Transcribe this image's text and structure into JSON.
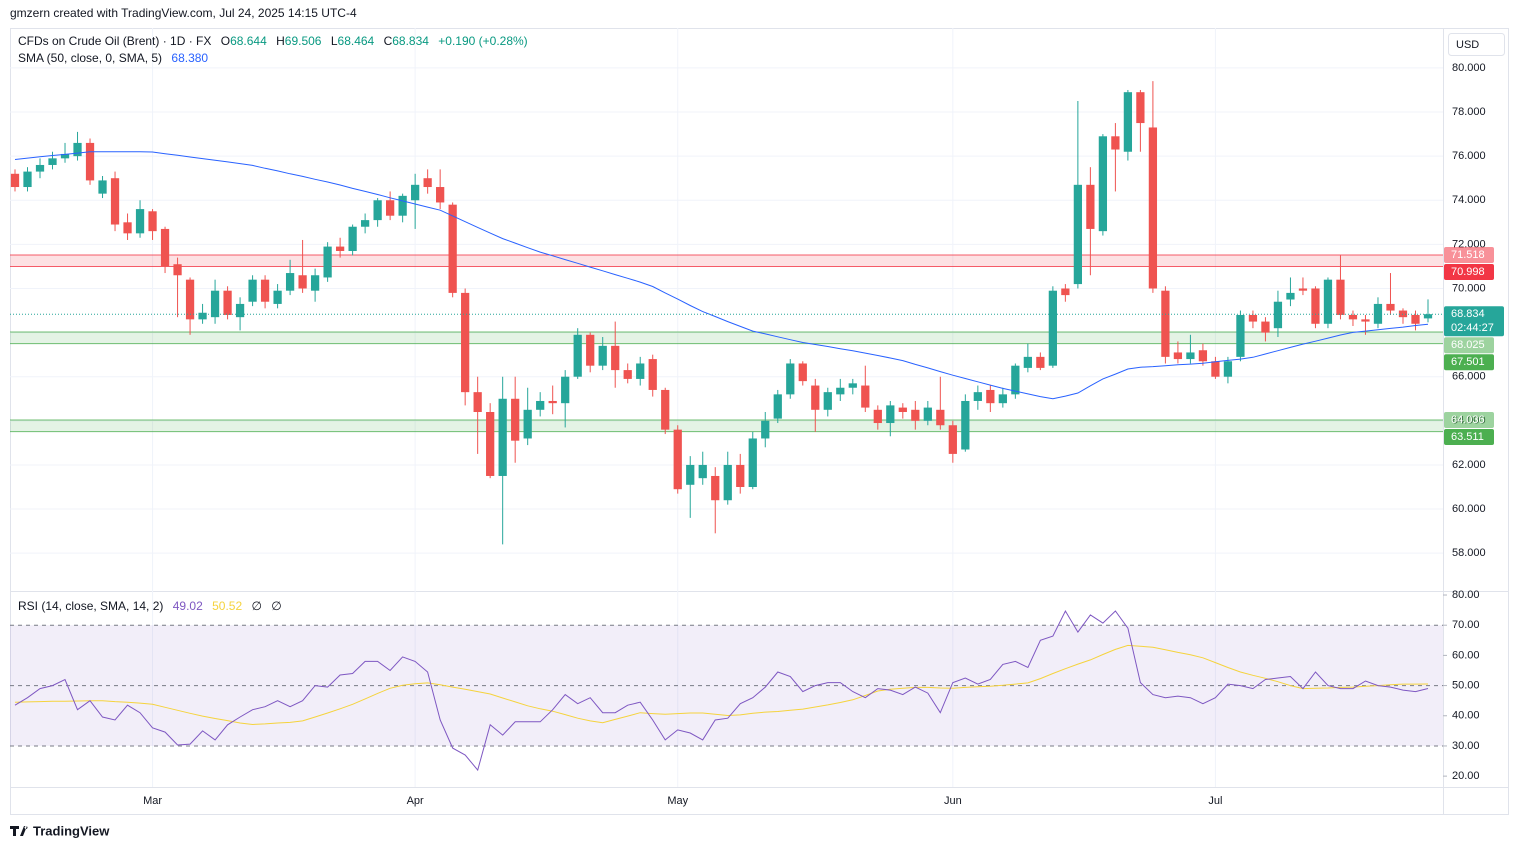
{
  "header": {
    "attribution": "gmzern created with TradingView.com, Jul 24, 2025 14:15 UTC-4",
    "logo": "TradingView"
  },
  "chart_data": [
    {
      "type": "candlestick",
      "title": "CFDs on Crude Oil (Brent) · 1D · FX",
      "ohlc_labels": [
        "O",
        "H",
        "L",
        "C"
      ],
      "change": "+0.190 (+0.28%)",
      "currency": "USD",
      "countdown": "02:44:27",
      "up_color": "#26a69a",
      "down_color": "#ef5350",
      "open": [
        75.2,
        74.6,
        75.3,
        75.6,
        75.9,
        76.0,
        76.6,
        74.3,
        75.0,
        73.0,
        72.5,
        73.5,
        72.7,
        71.1,
        70.4,
        68.6,
        68.7,
        69.9,
        68.7,
        69.4,
        70.4,
        69.3,
        69.9,
        70.6,
        69.9,
        70.5,
        71.9,
        71.7,
        72.8,
        73.1,
        74.0,
        73.3,
        74.0,
        75.0,
        74.6,
        73.8,
        69.8,
        65.3,
        64.4,
        61.5,
        65.0,
        63.2,
        64.5,
        64.9,
        64.8,
        66.0,
        67.9,
        66.5,
        67.4,
        66.3,
        65.9,
        66.8,
        65.4,
        63.6,
        61.1,
        61.4,
        61.5,
        60.4,
        62.0,
        61.0,
        63.2,
        64.1,
        65.2,
        66.6,
        65.6,
        64.5,
        65.2,
        65.5,
        65.6,
        64.5,
        63.9,
        64.6,
        64.5,
        64.0,
        64.5,
        63.8,
        62.7,
        64.9,
        65.4,
        64.8,
        65.2,
        66.4,
        66.9,
        66.5,
        70.0,
        70.2,
        74.7,
        72.6,
        76.9,
        76.2,
        78.9,
        77.3,
        69.9,
        67.1,
        66.8,
        67.2,
        66.7,
        66.0,
        66.9,
        68.8,
        68.5,
        68.2,
        69.5,
        70.0,
        70.0,
        68.4,
        70.4,
        68.8,
        68.6,
        68.4,
        69.3,
        69.0,
        68.8,
        68.644
      ],
      "high": [
        75.4,
        75.5,
        75.9,
        76.2,
        76.6,
        77.1,
        76.8,
        75.1,
        75.3,
        73.4,
        74.0,
        73.6,
        72.8,
        71.4,
        70.5,
        69.3,
        70.4,
        70.1,
        69.6,
        70.6,
        70.6,
        70.2,
        71.3,
        72.2,
        70.9,
        72.1,
        72.3,
        72.9,
        73.4,
        74.1,
        74.4,
        74.3,
        75.2,
        75.4,
        75.4,
        73.9,
        70.0,
        66.0,
        64.8,
        66.0,
        66.0,
        65.5,
        65.3,
        65.6,
        66.3,
        68.2,
        68.0,
        67.8,
        68.5,
        66.6,
        66.9,
        67.0,
        65.5,
        63.8,
        62.4,
        62.6,
        61.9,
        62.6,
        62.5,
        63.5,
        64.4,
        65.4,
        66.8,
        66.7,
        65.9,
        65.5,
        65.9,
        65.9,
        66.5,
        64.7,
        64.9,
        64.8,
        64.9,
        64.9,
        66.0,
        64.0,
        65.2,
        65.6,
        65.6,
        65.5,
        66.6,
        67.5,
        67.1,
        70.1,
        70.2,
        78.5,
        75.5,
        77.0,
        77.5,
        79.0,
        79.0,
        79.4,
        70.1,
        67.6,
        67.9,
        67.5,
        66.9,
        66.9,
        69.0,
        69.0,
        68.7,
        69.9,
        70.5,
        70.5,
        70.1,
        70.5,
        71.5,
        69.0,
        68.8,
        69.6,
        70.7,
        69.1,
        69.0,
        69.506
      ],
      "low": [
        74.4,
        74.4,
        75.0,
        75.4,
        75.7,
        75.8,
        74.7,
        74.1,
        72.6,
        72.2,
        72.3,
        72.2,
        70.7,
        68.7,
        67.9,
        68.4,
        68.4,
        68.6,
        68.1,
        69.2,
        69.1,
        69.1,
        69.7,
        69.8,
        69.4,
        70.3,
        71.4,
        71.5,
        72.5,
        72.8,
        73.1,
        73.0,
        72.7,
        74.3,
        73.6,
        69.6,
        64.7,
        62.5,
        61.4,
        58.4,
        62.1,
        62.9,
        64.2,
        64.3,
        63.7,
        65.9,
        66.2,
        66.3,
        65.5,
        65.7,
        65.6,
        65.1,
        63.4,
        60.7,
        59.6,
        61.1,
        58.9,
        60.2,
        60.7,
        60.9,
        62.8,
        63.9,
        65.0,
        65.6,
        63.5,
        64.2,
        64.9,
        65.2,
        64.4,
        63.6,
        63.3,
        64.1,
        63.6,
        63.8,
        63.6,
        62.1,
        62.6,
        64.5,
        64.4,
        64.6,
        65.0,
        66.2,
        66.3,
        66.4,
        69.4,
        70.0,
        70.6,
        72.4,
        74.4,
        75.8,
        76.2,
        69.8,
        66.6,
        66.6,
        66.6,
        66.5,
        65.9,
        65.7,
        66.7,
        68.2,
        67.6,
        67.8,
        69.2,
        69.7,
        68.2,
        68.2,
        68.6,
        68.3,
        67.9,
        68.2,
        68.8,
        68.4,
        68.1,
        68.464
      ],
      "close": [
        74.6,
        75.3,
        75.6,
        75.9,
        76.1,
        76.6,
        74.9,
        74.9,
        72.9,
        72.5,
        73.6,
        72.6,
        71.0,
        70.6,
        68.6,
        68.9,
        69.9,
        68.8,
        69.3,
        70.4,
        69.4,
        69.9,
        70.7,
        70.0,
        70.6,
        71.9,
        71.7,
        72.8,
        73.1,
        74.0,
        73.3,
        74.2,
        74.7,
        74.6,
        73.9,
        69.8,
        65.3,
        64.4,
        61.5,
        65.0,
        63.1,
        64.5,
        64.9,
        64.8,
        66.0,
        67.9,
        66.5,
        67.4,
        66.3,
        65.9,
        66.6,
        65.4,
        63.6,
        60.9,
        62.0,
        62.0,
        60.4,
        62.0,
        61.0,
        63.2,
        64.0,
        65.2,
        66.6,
        65.8,
        64.5,
        65.3,
        65.5,
        65.7,
        64.6,
        63.9,
        64.7,
        64.4,
        64.0,
        64.6,
        63.8,
        62.5,
        64.9,
        65.3,
        64.8,
        65.2,
        66.5,
        66.9,
        66.4,
        69.9,
        69.7,
        74.7,
        72.7,
        76.9,
        76.3,
        78.9,
        77.5,
        70.0,
        66.9,
        66.8,
        67.1,
        66.7,
        66.0,
        66.7,
        68.8,
        68.5,
        68.0,
        69.4,
        69.8,
        69.9,
        68.4,
        70.4,
        68.8,
        68.6,
        68.5,
        69.3,
        69.0,
        68.7,
        68.4,
        68.834
      ],
      "overlays": [
        {
          "name": "SMA (50, close, 0, SMA, 5)",
          "color": "#2962ff",
          "value_label": "68.380",
          "values": [
            75.85,
            75.91,
            75.97,
            76.03,
            76.08,
            76.14,
            76.2,
            76.2,
            76.2,
            76.2,
            76.2,
            76.19,
            76.11,
            76.04,
            75.96,
            75.89,
            75.81,
            75.74,
            75.66,
            75.58,
            75.45,
            75.33,
            75.2,
            75.08,
            74.95,
            74.83,
            74.69,
            74.54,
            74.4,
            74.26,
            74.11,
            73.97,
            73.83,
            73.69,
            73.55,
            73.29,
            73.03,
            72.77,
            72.51,
            72.26,
            72.06,
            71.85,
            71.65,
            71.48,
            71.31,
            71.14,
            70.97,
            70.8,
            70.63,
            70.46,
            70.29,
            70.09,
            69.8,
            69.52,
            69.23,
            68.95,
            68.73,
            68.5,
            68.28,
            68.07,
            67.94,
            67.81,
            67.68,
            67.55,
            67.46,
            67.37,
            67.27,
            67.18,
            67.07,
            66.96,
            66.85,
            66.73,
            66.56,
            66.4,
            66.23,
            66.07,
            65.92,
            65.77,
            65.62,
            65.47,
            65.35,
            65.22,
            65.1,
            65.0,
            65.12,
            65.26,
            65.59,
            65.9,
            66.12,
            66.35,
            66.43,
            66.46,
            66.5,
            66.54,
            66.57,
            66.61,
            66.68,
            66.74,
            66.8,
            66.88,
            67.03,
            67.18,
            67.33,
            67.48,
            67.61,
            67.75,
            67.89,
            68.01,
            68.07,
            68.13,
            68.19,
            68.25,
            68.32,
            68.38
          ]
        }
      ],
      "zones": [
        {
          "top": 71.518,
          "bottom": 70.998,
          "color": "#f23645"
        },
        {
          "top": 68.025,
          "bottom": 67.501,
          "color": "#4caf50"
        },
        {
          "top": 64.036,
          "bottom": 63.511,
          "color": "#4caf50"
        }
      ],
      "ylim": [
        56.33,
        81.81
      ],
      "yticks": [
        {
          "value": 58,
          "label": "58.000"
        },
        {
          "value": 60,
          "label": "60.000"
        },
        {
          "value": 62,
          "label": "62.000"
        },
        {
          "value": 64,
          "label": "64.000"
        },
        {
          "value": 66,
          "label": "66.000"
        },
        {
          "value": 68,
          "label": "68.000"
        },
        {
          "value": 70,
          "label": "70.000"
        },
        {
          "value": 72,
          "label": "72.000"
        },
        {
          "value": 74,
          "label": "74.000"
        },
        {
          "value": 76,
          "label": "76.000"
        },
        {
          "value": 78,
          "label": "78.000"
        },
        {
          "value": 80,
          "label": "80.000"
        }
      ],
      "xlim": [
        -0.4,
        114.2
      ],
      "xticks": [
        {
          "value": 11,
          "label": "Mar"
        },
        {
          "value": 32,
          "label": "Apr"
        },
        {
          "value": 53,
          "label": "May"
        },
        {
          "value": 75,
          "label": "Jun"
        },
        {
          "value": 96,
          "label": "Jul"
        }
      ],
      "grid": true
    },
    {
      "type": "line",
      "title": "RSI (14, close, SMA, 14, 2)",
      "extra_labels": [
        "∅",
        "∅"
      ],
      "series": [
        {
          "color": "#7e57c2",
          "values": [
            43.5,
            46,
            49,
            50,
            52,
            42,
            45,
            39.6,
            38.6,
            43.5,
            41,
            36,
            34.6,
            30.3,
            30.6,
            35,
            32,
            37,
            39.6,
            42,
            43,
            45,
            43,
            45,
            50,
            49.5,
            53.5,
            54,
            58,
            58,
            55,
            59.5,
            58,
            54.5,
            38.6,
            29.3,
            27,
            22,
            37,
            33.6,
            38,
            38,
            38,
            42,
            47,
            44,
            46,
            41,
            41,
            43.5,
            44.5,
            38.6,
            32,
            35.3,
            34.3,
            32,
            38.6,
            39.2,
            44,
            46,
            49.5,
            54.5,
            53,
            48,
            50,
            51,
            51,
            48,
            46,
            49,
            48.5,
            47,
            49.5,
            47.5,
            41,
            51,
            52.5,
            50.5,
            52,
            57,
            58,
            56,
            65,
            66.4,
            74.7,
            67.7,
            73.4,
            70.7,
            74.7,
            69,
            51,
            47,
            46,
            46.5,
            46,
            44,
            46,
            50.5,
            50,
            49,
            52,
            52.5,
            53,
            49,
            54.5,
            50,
            49,
            49,
            51.5,
            50,
            49.5,
            48.5,
            48,
            49.02
          ]
        },
        {
          "color": "#f5d33d",
          "values": [
            44.5,
            44.6,
            44.7,
            44.8,
            44.8,
            44.9,
            45.0,
            45.0,
            44.7,
            44.5,
            44.2,
            43.8,
            42.8,
            41.8,
            40.8,
            39.9,
            39.1,
            38.4,
            37.6,
            37.1,
            37.3,
            37.6,
            37.8,
            38.3,
            39.6,
            40.9,
            42.3,
            43.8,
            45.6,
            47.4,
            49.1,
            50.1,
            50.6,
            50.9,
            50.3,
            49.5,
            48.8,
            48.0,
            47.2,
            45.9,
            44.6,
            43.3,
            42.3,
            41.5,
            40.4,
            39.2,
            38.3,
            37.7,
            38.8,
            39.9,
            41.0,
            40.7,
            40.5,
            40.7,
            40.9,
            40.9,
            40.5,
            40.1,
            40.3,
            40.8,
            41.2,
            41.4,
            41.8,
            42.2,
            42.9,
            43.6,
            44.4,
            45.3,
            46.7,
            48.2,
            48.8,
            49.1,
            49.4,
            49.4,
            49.2,
            49.1,
            49.4,
            49.6,
            49.8,
            50.1,
            50.5,
            50.9,
            52.3,
            54.0,
            55.6,
            57.1,
            58.5,
            60.3,
            62.0,
            63.3,
            63.0,
            62.7,
            61.9,
            61.0,
            60.2,
            59.2,
            57.6,
            56.0,
            54.5,
            53.4,
            52.4,
            51.3,
            50.0,
            49.0,
            49.1,
            49.2,
            49.4,
            49.5,
            49.8,
            50.0,
            50.3,
            50.5,
            50.5,
            50.52
          ]
        }
      ],
      "levels": [
        70,
        50,
        30
      ],
      "ylim": [
        16.4,
        81
      ],
      "yticks": [
        {
          "value": 20,
          "label": "20.00"
        },
        {
          "value": 30,
          "label": "30.00"
        },
        {
          "value": 40,
          "label": "40.00"
        },
        {
          "value": 50,
          "label": "50.00"
        },
        {
          "value": 60,
          "label": "60.00"
        },
        {
          "value": 70,
          "label": "70.00"
        },
        {
          "value": 80,
          "label": "80.00"
        }
      ]
    }
  ]
}
